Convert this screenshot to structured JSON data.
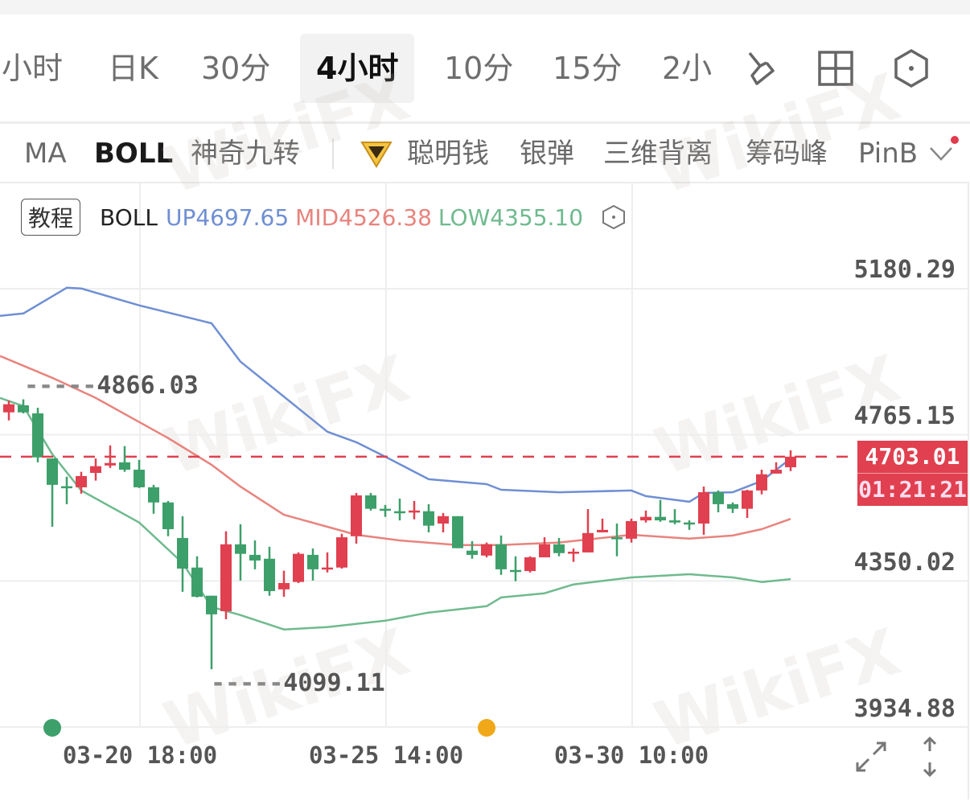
{
  "timeframe_tabs": [
    {
      "label": "小时",
      "active": false
    },
    {
      "label": "日K",
      "active": false
    },
    {
      "label": "30分",
      "active": false
    },
    {
      "label": "4小时",
      "active": true
    },
    {
      "label": "10分",
      "active": false
    },
    {
      "label": "15分",
      "active": false
    },
    {
      "label": "2小",
      "active": false
    }
  ],
  "toolbar_icons": [
    "drawing-pen-icon",
    "layout-grid-icon",
    "settings-hexagon-icon"
  ],
  "indicators": [
    {
      "label": "MA",
      "active": false
    },
    {
      "label": "BOLL",
      "active": true
    },
    {
      "label": "神奇九转",
      "active": false
    },
    {
      "label": "聪明钱",
      "active": false,
      "icon": "diamond-icon"
    },
    {
      "label": "银弹",
      "active": false
    },
    {
      "label": "三维背离",
      "active": false
    },
    {
      "label": "筹码峰",
      "active": false
    },
    {
      "label": "PinB",
      "active": false
    }
  ],
  "legend": {
    "tutorial": "教程",
    "name": "BOLL",
    "up": "UP4697.65",
    "mid": "MID4526.38",
    "low": "LOW4355.10"
  },
  "watermark": "WikiFX",
  "colors": {
    "up": "#e0404f",
    "down": "#3d9f6a",
    "upper_band": "#6f8fd3",
    "mid_band": "#e8837d",
    "lower_band": "#6fba8e",
    "last_price": "#e0404f"
  },
  "last_price": {
    "value": "4703.01",
    "countdown": "01:21:21"
  },
  "extremes": {
    "high_label": "4866.03",
    "low_label": "4099.11"
  },
  "chart_data": {
    "type": "candlestick",
    "interval": "4小时",
    "y_ticks": [
      "5180.29",
      "4765.15",
      "4350.02",
      "3934.88"
    ],
    "ylim": [
      3934.88,
      5180.29
    ],
    "x_ticks": [
      {
        "index": 10,
        "label": "03-20 18:00"
      },
      {
        "index": 27,
        "label": "03-25 14:00"
      },
      {
        "index": 44,
        "label": "03-30 10:00"
      }
    ],
    "grid": true,
    "candles": [
      [
        4829,
        4852,
        4862,
        4806
      ],
      [
        4849,
        4829,
        4866.03,
        4826
      ],
      [
        4826,
        4701,
        4842,
        4687
      ],
      [
        4698,
        4623,
        4698,
        4504
      ],
      [
        4619,
        4617,
        4646,
        4568
      ],
      [
        4616,
        4648,
        4660,
        4598
      ],
      [
        4657,
        4676,
        4698,
        4635
      ],
      [
        4678,
        4685,
        4735,
        4671
      ],
      [
        4687,
        4666,
        4733,
        4660
      ],
      [
        4666,
        4616,
        4694,
        4614
      ],
      [
        4616,
        4573,
        4623,
        4541
      ],
      [
        4573,
        4497,
        4577,
        4477
      ],
      [
        4472,
        4385,
        4534,
        4319
      ],
      [
        4388,
        4305,
        4420,
        4303
      ],
      [
        4308,
        4255,
        4308,
        4099.11
      ],
      [
        4264,
        4454,
        4491,
        4241
      ],
      [
        4454,
        4427,
        4511,
        4351
      ],
      [
        4424,
        4408,
        4465,
        4383
      ],
      [
        4413,
        4321,
        4447,
        4308
      ],
      [
        4326,
        4344,
        4379,
        4305
      ],
      [
        4347,
        4427,
        4431,
        4344
      ],
      [
        4424,
        4383,
        4442,
        4351
      ],
      [
        4383,
        4388,
        4431,
        4374
      ],
      [
        4388,
        4474,
        4484,
        4385
      ],
      [
        4477,
        4593,
        4600,
        4456
      ],
      [
        4593,
        4555,
        4600,
        4550
      ],
      [
        4555,
        4550,
        4566,
        4532
      ],
      [
        4548,
        4545,
        4584,
        4522
      ],
      [
        4545,
        4550,
        4577,
        4525
      ],
      [
        4548,
        4507,
        4568,
        4488
      ],
      [
        4513,
        4534,
        4543,
        4488
      ],
      [
        4534,
        4443,
        4534,
        4443
      ],
      [
        4436,
        4424,
        4463,
        4413
      ],
      [
        4422,
        4454,
        4459,
        4417
      ],
      [
        4454,
        4383,
        4479,
        4367
      ],
      [
        4381,
        4376,
        4420,
        4349
      ],
      [
        4378,
        4417,
        4420,
        4374
      ],
      [
        4417,
        4454,
        4474,
        4417
      ],
      [
        4454,
        4429,
        4472,
        4420
      ],
      [
        4429,
        4433,
        4442,
        4404
      ],
      [
        4431,
        4486,
        4554,
        4431
      ],
      [
        4488,
        4495,
        4527,
        4488
      ],
      [
        4474,
        4470,
        4513,
        4420
      ],
      [
        4470,
        4520,
        4527,
        4459
      ],
      [
        4522,
        4532,
        4550,
        4516
      ],
      [
        4532,
        4522,
        4580,
        4518
      ],
      [
        4522,
        4516,
        4554,
        4511
      ],
      [
        4516,
        4513,
        4522,
        4495
      ],
      [
        4513,
        4602,
        4618,
        4481
      ],
      [
        4602,
        4568,
        4607,
        4545
      ],
      [
        4568,
        4555,
        4573,
        4543
      ],
      [
        4555,
        4607,
        4609,
        4529
      ],
      [
        4607,
        4653,
        4666,
        4596
      ],
      [
        4655,
        4666,
        4687,
        4655
      ],
      [
        4673,
        4703.01,
        4721,
        4662
      ]
    ],
    "candle_fields": [
      "open",
      "close",
      "high",
      "low"
    ],
    "series": [
      {
        "name": "UP",
        "points": [
          [
            1,
            5103
          ],
          [
            2,
            5110
          ],
          [
            5,
            5183
          ],
          [
            6,
            5181
          ],
          [
            10,
            5133
          ],
          [
            15,
            5082
          ],
          [
            17,
            4973
          ],
          [
            23,
            4774
          ],
          [
            25,
            4744
          ],
          [
            27,
            4703
          ],
          [
            30,
            4639
          ],
          [
            34,
            4625
          ],
          [
            35,
            4609
          ],
          [
            39,
            4602
          ],
          [
            44,
            4607
          ],
          [
            45,
            4591
          ],
          [
            48,
            4575
          ],
          [
            49,
            4600
          ],
          [
            51,
            4602
          ],
          [
            53,
            4634
          ],
          [
            55,
            4697.65
          ]
        ]
      },
      {
        "name": "MID",
        "points": [
          [
            1,
            4989
          ],
          [
            4,
            4927
          ],
          [
            7,
            4870
          ],
          [
            12,
            4756
          ],
          [
            15,
            4680
          ],
          [
            17,
            4618
          ],
          [
            20,
            4538
          ],
          [
            25,
            4481
          ],
          [
            28,
            4465
          ],
          [
            32,
            4452
          ],
          [
            35,
            4452
          ],
          [
            39,
            4459
          ],
          [
            44,
            4481
          ],
          [
            48,
            4470
          ],
          [
            51,
            4479
          ],
          [
            53,
            4497
          ],
          [
            55,
            4526.38
          ]
        ]
      },
      {
        "name": "LOW",
        "points": [
          [
            1,
            4870
          ],
          [
            2,
            4847
          ],
          [
            4,
            4710
          ],
          [
            6,
            4607
          ],
          [
            10,
            4516
          ],
          [
            13,
            4401
          ],
          [
            15,
            4276
          ],
          [
            17,
            4253
          ],
          [
            20,
            4212
          ],
          [
            23,
            4219
          ],
          [
            27,
            4237
          ],
          [
            30,
            4260
          ],
          [
            34,
            4278
          ],
          [
            35,
            4303
          ],
          [
            38,
            4315
          ],
          [
            40,
            4340
          ],
          [
            44,
            4360
          ],
          [
            48,
            4369
          ],
          [
            51,
            4360
          ],
          [
            53,
            4347
          ],
          [
            55,
            4355.1
          ]
        ]
      }
    ],
    "event_markers": [
      {
        "index": 4,
        "color": "#3d9f6a"
      },
      {
        "index": 34,
        "color": "#f0a818"
      }
    ]
  }
}
